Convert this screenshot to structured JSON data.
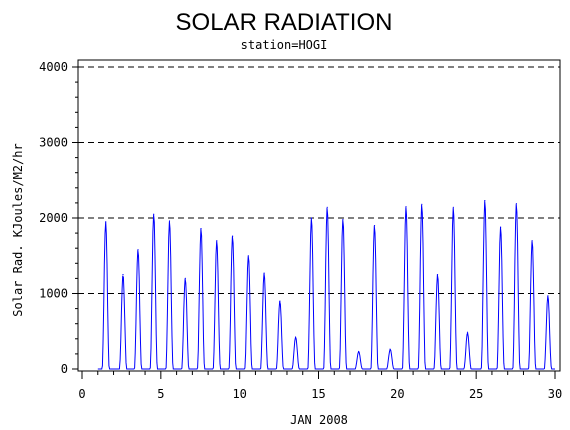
{
  "chart_data": {
    "type": "line",
    "title": "SOLAR RADIATION",
    "subtitle": "station=HOGI",
    "xlabel": "JAN 2008",
    "ylabel": "Solar Rad. KJoules/M2/hr",
    "xlim": [
      0,
      30
    ],
    "ylim": [
      0,
      4000
    ],
    "x_ticks": [
      "0",
      "5",
      "10",
      "15",
      "20",
      "25",
      "30"
    ],
    "y_ticks": [
      "0",
      "1000",
      "2000",
      "3000",
      "4000"
    ],
    "grid": "horizontal dashed",
    "series": [
      {
        "color": "#0000ff",
        "peaks": [
          {
            "day": 1.5,
            "value": 1950
          },
          {
            "day": 2.6,
            "value": 1250
          },
          {
            "day": 3.55,
            "value": 1580
          },
          {
            "day": 4.55,
            "value": 2050
          },
          {
            "day": 5.55,
            "value": 1960
          },
          {
            "day": 6.55,
            "value": 1200
          },
          {
            "day": 7.55,
            "value": 1860
          },
          {
            "day": 8.55,
            "value": 1700
          },
          {
            "day": 9.55,
            "value": 1760
          },
          {
            "day": 10.55,
            "value": 1500
          },
          {
            "day": 11.55,
            "value": 1270
          },
          {
            "day": 12.55,
            "value": 900
          },
          {
            "day": 13.55,
            "value": 420
          },
          {
            "day": 14.55,
            "value": 2000
          },
          {
            "day": 15.55,
            "value": 2140
          },
          {
            "day": 16.55,
            "value": 1980
          },
          {
            "day": 17.55,
            "value": 230
          },
          {
            "day": 18.55,
            "value": 1900
          },
          {
            "day": 19.55,
            "value": 260
          },
          {
            "day": 20.55,
            "value": 2150
          },
          {
            "day": 21.55,
            "value": 2180
          },
          {
            "day": 22.55,
            "value": 1250
          },
          {
            "day": 23.55,
            "value": 2140
          },
          {
            "day": 24.45,
            "value": 480
          },
          {
            "day": 25.55,
            "value": 2230
          },
          {
            "day": 26.55,
            "value": 1880
          },
          {
            "day": 27.55,
            "value": 2190
          },
          {
            "day": 28.55,
            "value": 1700
          },
          {
            "day": 29.55,
            "value": 970
          }
        ]
      }
    ]
  }
}
